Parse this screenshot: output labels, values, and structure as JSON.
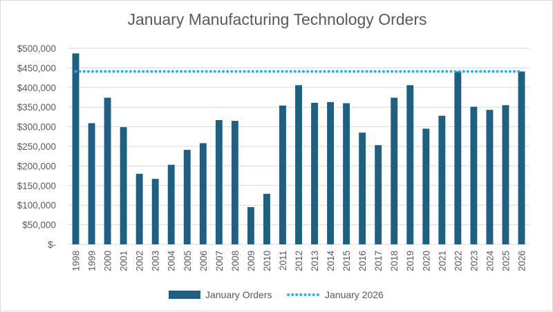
{
  "chart_data": {
    "type": "bar",
    "title": "January Manufacturing Technology Orders",
    "xlabel": "",
    "ylabel": "",
    "ylim": [
      0,
      500000
    ],
    "yticks": [
      0,
      50000,
      100000,
      150000,
      200000,
      250000,
      300000,
      350000,
      400000,
      450000,
      500000
    ],
    "ytick_labels": [
      "$-",
      "$50,000",
      "$100,000",
      "$150,000",
      "$200,000",
      "$250,000",
      "$300,000",
      "$350,000",
      "$400,000",
      "$450,000",
      "$500,000"
    ],
    "categories": [
      "1998",
      "1999",
      "2000",
      "2001",
      "2002",
      "2003",
      "2004",
      "2005",
      "2006",
      "2007",
      "2008",
      "2009",
      "2010",
      "2011",
      "2012",
      "2013",
      "2014",
      "2015",
      "2016",
      "2017",
      "2018",
      "2019",
      "2020",
      "2021",
      "2022",
      "2023",
      "2024",
      "2025",
      "2026"
    ],
    "series": [
      {
        "name": "January Orders",
        "color": "#1f5f82",
        "values": [
          487000,
          309000,
          374000,
          299000,
          180000,
          167000,
          203000,
          241000,
          258000,
          317000,
          315000,
          95000,
          129000,
          354000,
          406000,
          361000,
          363000,
          360000,
          285000,
          253000,
          374000,
          406000,
          295000,
          328000,
          441000,
          351000,
          343000,
          355000,
          441000
        ]
      }
    ],
    "reference_line": {
      "name": "January 2026",
      "value": 441000,
      "color": "#2eaee6",
      "style": "dotted"
    },
    "grid": true,
    "legend": "bottom-center"
  }
}
